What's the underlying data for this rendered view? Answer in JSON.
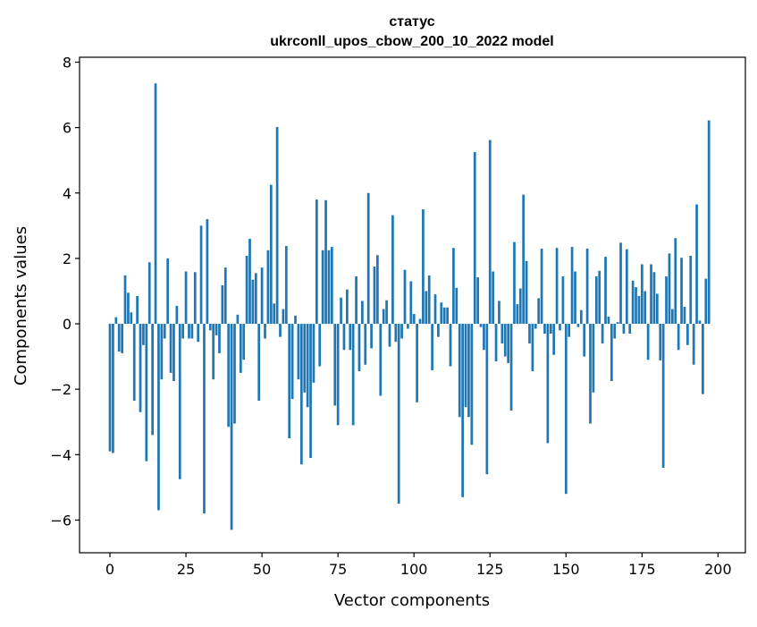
{
  "chart_data": {
    "type": "bar",
    "title": "статус",
    "subtitle": "ukrconll_upos_cbow_200_10_2022 model",
    "xlabel": "Vector components",
    "ylabel": "Components values",
    "xlim": [
      -10,
      209
    ],
    "ylim": [
      -7,
      8.15
    ],
    "xticks": [
      0,
      25,
      50,
      75,
      100,
      125,
      150,
      175,
      200
    ],
    "yticks": [
      -6,
      -4,
      -2,
      0,
      2,
      4,
      6,
      8
    ],
    "xtick_labels": [
      "0",
      "25",
      "50",
      "75",
      "100",
      "125",
      "150",
      "175",
      "200"
    ],
    "ytick_labels": [
      "−6",
      "−4",
      "−2",
      "0",
      "2",
      "4",
      "6",
      "8"
    ],
    "grid": false,
    "bar_color": "#1f77b4",
    "series": [
      {
        "x_start": 0,
        "values": [
          -3.9,
          -3.95,
          0.2,
          -0.85,
          -0.9,
          1.48,
          0.95,
          0.35,
          -2.35,
          0.85,
          -2.7,
          -0.65,
          -4.2,
          1.88,
          -3.4,
          7.35,
          -5.7,
          -1.7,
          -0.45,
          2.0,
          -1.5,
          -1.75,
          0.55,
          -4.75,
          -0.45,
          1.6,
          -0.45,
          -0.45,
          1.58,
          -0.55,
          3.0,
          -5.8,
          3.2,
          -0.2,
          -1.7,
          -0.35,
          -0.9,
          1.18,
          1.72,
          -3.15,
          -6.3,
          -3.05,
          0.28,
          -1.5,
          -1.1,
          2.08,
          2.6,
          1.35,
          1.55,
          -2.35,
          1.72,
          -0.45,
          2.25,
          4.25,
          0.62,
          6.02,
          -0.4,
          0.45,
          2.38,
          -3.5,
          -2.3,
          0.25,
          -1.7,
          -4.3,
          -2.1,
          -2.55,
          -4.1,
          -1.8,
          3.8,
          -1.3,
          2.25,
          3.78,
          2.25,
          2.35,
          -2.5,
          -3.1,
          0.8,
          -0.8,
          1.05,
          -0.8,
          -3.1,
          1.45,
          -1.45,
          0.7,
          -1.25,
          4.0,
          -0.75,
          1.75,
          2.1,
          -2.2,
          0.45,
          0.72,
          -0.7,
          3.32,
          -0.55,
          -5.5,
          -0.45,
          1.65,
          -0.15,
          1.3,
          0.3,
          -2.4,
          0.15,
          3.5,
          1.0,
          1.48,
          -1.42,
          0.9,
          -0.4,
          0.65,
          0.5,
          0.5,
          -1.3,
          2.32,
          1.1,
          -2.85,
          -5.3,
          -2.55,
          -2.85,
          -3.7,
          5.25,
          1.42,
          -0.1,
          -0.8,
          -4.6,
          5.62,
          1.6,
          -1.15,
          0.7,
          -0.6,
          -1.0,
          -1.2,
          -2.65,
          2.5,
          0.6,
          1.08,
          3.95,
          1.92,
          -0.6,
          -1.45,
          -0.15,
          0.78,
          2.3,
          -0.3,
          -3.65,
          -0.3,
          -0.95,
          2.32,
          -0.2,
          1.45,
          -5.2,
          -0.4,
          2.35,
          1.6,
          -0.1,
          0.42,
          -1.0,
          2.3,
          -3.05,
          -2.1,
          1.45,
          1.62,
          -0.6,
          2.05,
          0.22,
          -1.75,
          -0.45,
          0.05,
          2.48,
          -0.3,
          2.28,
          -0.3,
          1.32,
          1.12,
          0.85,
          1.82,
          1.0,
          -1.1,
          1.82,
          1.58,
          0.92,
          -1.12,
          -4.4,
          1.45,
          2.15,
          0.45,
          2.62,
          -0.8,
          2.02,
          0.52,
          -0.65,
          2.08,
          -1.25,
          3.65,
          0.1,
          -2.15,
          1.38,
          6.22
        ]
      }
    ]
  }
}
